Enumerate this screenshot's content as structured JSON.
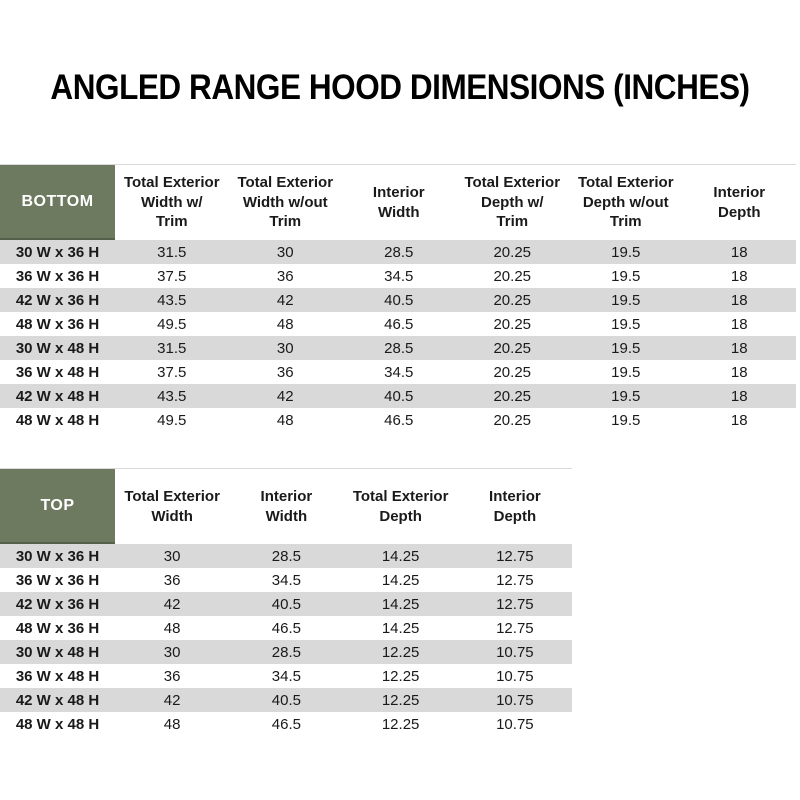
{
  "page": {
    "title": "ANGLED RANGE HOOD DIMENSIONS (INCHES)"
  },
  "colors": {
    "corner_green": "#6e7a60",
    "corner_green_border": "#565f4a",
    "row_stripe_gray": "#d9d9d9",
    "text": "#1a1a1a"
  },
  "tables": [
    {
      "name": "BOTTOM",
      "columns": [
        "Total Exterior\nWidth w/\nTrim",
        "Total Exterior\nWidth w/out\nTrim",
        "Interior\nWidth",
        "Total Exterior\nDepth w/\nTrim",
        "Total Exterior\nDepth w/out\nTrim",
        "Interior\nDepth"
      ],
      "rows": [
        {
          "label": "30 W x 36 H",
          "values": [
            "31.5",
            "30",
            "28.5",
            "20.25",
            "19.5",
            "18"
          ]
        },
        {
          "label": "36 W x 36 H",
          "values": [
            "37.5",
            "36",
            "34.5",
            "20.25",
            "19.5",
            "18"
          ]
        },
        {
          "label": "42 W x 36 H",
          "values": [
            "43.5",
            "42",
            "40.5",
            "20.25",
            "19.5",
            "18"
          ]
        },
        {
          "label": "48 W x 36 H",
          "values": [
            "49.5",
            "48",
            "46.5",
            "20.25",
            "19.5",
            "18"
          ]
        },
        {
          "label": "30 W x 48 H",
          "values": [
            "31.5",
            "30",
            "28.5",
            "20.25",
            "19.5",
            "18"
          ]
        },
        {
          "label": "36 W x 48 H",
          "values": [
            "37.5",
            "36",
            "34.5",
            "20.25",
            "19.5",
            "18"
          ]
        },
        {
          "label": "42 W x 48 H",
          "values": [
            "43.5",
            "42",
            "40.5",
            "20.25",
            "19.5",
            "18"
          ]
        },
        {
          "label": "48 W x 48 H",
          "values": [
            "49.5",
            "48",
            "46.5",
            "20.25",
            "19.5",
            "18"
          ]
        }
      ]
    },
    {
      "name": "TOP",
      "columns": [
        "Total Exterior\nWidth",
        "Interior\nWidth",
        "Total Exterior\nDepth",
        "Interior\nDepth"
      ],
      "rows": [
        {
          "label": "30 W x 36 H",
          "values": [
            "30",
            "28.5",
            "14.25",
            "12.75"
          ]
        },
        {
          "label": "36 W x 36 H",
          "values": [
            "36",
            "34.5",
            "14.25",
            "12.75"
          ]
        },
        {
          "label": "42 W x 36 H",
          "values": [
            "42",
            "40.5",
            "14.25",
            "12.75"
          ]
        },
        {
          "label": "48 W x 36 H",
          "values": [
            "48",
            "46.5",
            "14.25",
            "12.75"
          ]
        },
        {
          "label": "30 W x 48 H",
          "values": [
            "30",
            "28.5",
            "12.25",
            "10.75"
          ]
        },
        {
          "label": "36 W x 48 H",
          "values": [
            "36",
            "34.5",
            "12.25",
            "10.75"
          ]
        },
        {
          "label": "42 W x 48 H",
          "values": [
            "42",
            "40.5",
            "12.25",
            "10.75"
          ]
        },
        {
          "label": "48 W x 48 H",
          "values": [
            "48",
            "46.5",
            "12.25",
            "10.75"
          ]
        }
      ]
    }
  ]
}
